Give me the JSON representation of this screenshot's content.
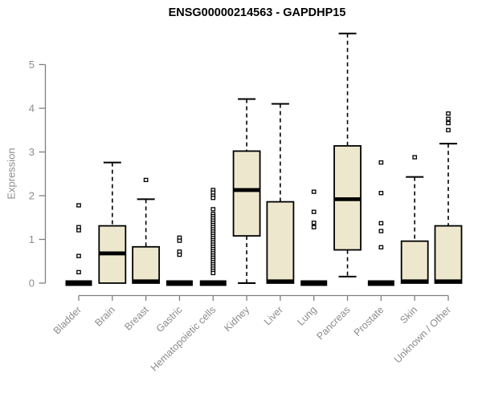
{
  "figure": {
    "title": "ENSG00000214563 - GAPDHP15",
    "ylabel": "Expression"
  },
  "colors": {
    "background": "#ffffff",
    "box_fill": "#EDE8CD",
    "box_border": "#000000",
    "median": "#000000",
    "whisker": "#000000",
    "outlier_stroke": "#000000",
    "axis_line": "#7f7f7f",
    "axis_text": "#8c8c8c",
    "title_text": "#000000"
  },
  "chart_data": {
    "type": "boxplot",
    "title": "ENSG00000214563 - GAPDHP15",
    "xlabel": "",
    "ylabel": "Expression",
    "ylim": [
      0,
      5.85
    ],
    "yticks": [
      0,
      1,
      2,
      3,
      4,
      5
    ],
    "grid": false,
    "legend": false,
    "categories": [
      "Bladder",
      "Brain",
      "Breast",
      "Gastric",
      "Hematopoietic cells",
      "Kidney",
      "Liver",
      "Lung",
      "Pancreas",
      "Prostate",
      "Skin",
      "Unknown / Other"
    ],
    "boxes": [
      {
        "category": "Bladder",
        "low": 0,
        "q1": 0,
        "median": 0,
        "q3": 0,
        "high": 0,
        "outliers": [
          1.78,
          1.28,
          1.21,
          0.62,
          0.25
        ]
      },
      {
        "category": "Brain",
        "low": 0,
        "q1": 0,
        "median": 0.68,
        "q3": 1.31,
        "high": 2.76,
        "outliers": []
      },
      {
        "category": "Breast",
        "low": 0,
        "q1": 0,
        "median": 0,
        "q3": 0.83,
        "high": 1.92,
        "outliers": [
          2.36
        ]
      },
      {
        "category": "Gastric",
        "low": 0,
        "q1": 0,
        "median": 0,
        "q3": 0,
        "high": 0,
        "outliers": [
          1.04,
          0.97,
          0.72,
          0.65
        ]
      },
      {
        "category": "Hematopoietic cells",
        "low": 0,
        "q1": 0,
        "median": 0,
        "q3": 0,
        "high": 0,
        "outliers": [
          2.13,
          2.07,
          2.0,
          1.95,
          1.69,
          1.58,
          1.53,
          1.48,
          1.43,
          1.38,
          1.33,
          1.28,
          1.23,
          1.18,
          1.13,
          1.08,
          1.03,
          0.98,
          0.93,
          0.88,
          0.83,
          0.78,
          0.73,
          0.68,
          0.63,
          0.58,
          0.53,
          0.48,
          0.43,
          0.38,
          0.33,
          0.28,
          0.23
        ]
      },
      {
        "category": "Kidney",
        "low": 0,
        "q1": 1.08,
        "median": 2.13,
        "q3": 3.02,
        "high": 4.21,
        "outliers": []
      },
      {
        "category": "Liver",
        "low": 0,
        "q1": 0,
        "median": 0,
        "q3": 1.86,
        "high": 4.1,
        "outliers": []
      },
      {
        "category": "Lung",
        "low": 0,
        "q1": 0,
        "median": 0,
        "q3": 0,
        "high": 0,
        "outliers": [
          2.09,
          1.63,
          1.38,
          1.28
        ]
      },
      {
        "category": "Pancreas",
        "low": 0.15,
        "q1": 0.76,
        "median": 1.92,
        "q3": 3.14,
        "high": 5.71,
        "outliers": []
      },
      {
        "category": "Prostate",
        "low": 0,
        "q1": 0,
        "median": 0,
        "q3": 0,
        "high": 0,
        "outliers": [
          2.76,
          2.06,
          1.37,
          1.19,
          0.82
        ]
      },
      {
        "category": "Skin",
        "low": 0,
        "q1": 0,
        "median": 0,
        "q3": 0.96,
        "high": 2.43,
        "outliers": [
          2.88
        ]
      },
      {
        "category": "Unknown / Other",
        "low": 0,
        "q1": 0,
        "median": 0,
        "q3": 1.31,
        "high": 3.19,
        "outliers": [
          3.88,
          3.76,
          3.66,
          3.5
        ]
      }
    ]
  }
}
